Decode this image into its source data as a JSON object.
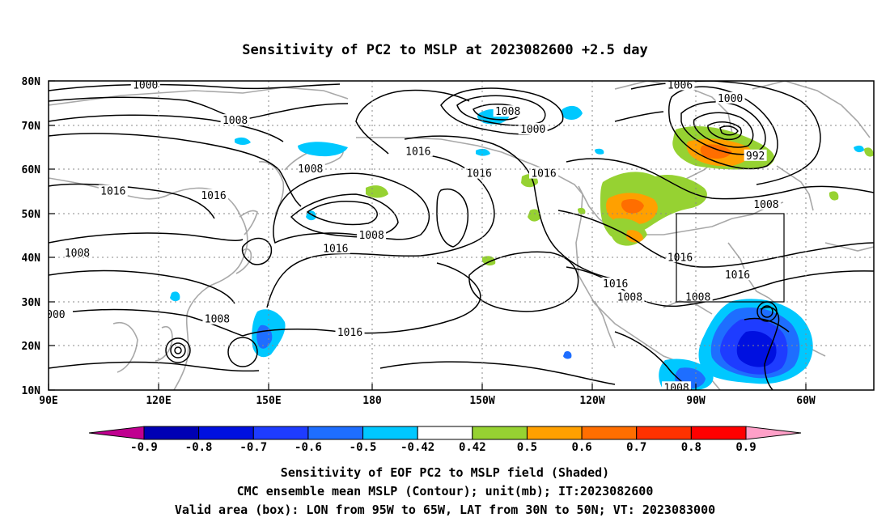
{
  "title": "Sensitivity of PC2 to MSLP at 2023082600 +2.5 day",
  "lat_labels": [
    "80N",
    "70N",
    "60N",
    "50N",
    "40N",
    "30N",
    "20N",
    "10N"
  ],
  "lon_labels": [
    "90E",
    "120E",
    "150E",
    "180",
    "150W",
    "120W",
    "90W",
    "60W"
  ],
  "contour_labels": [
    {
      "text": "1000",
      "lat": 79,
      "lon": 117
    },
    {
      "text": "1008",
      "lat": 71,
      "lon": 142
    },
    {
      "text": "1008",
      "lat": 73,
      "lon": 218
    },
    {
      "text": "1000",
      "lat": 69,
      "lon": 225
    },
    {
      "text": "1006",
      "lat": 79,
      "lon": 266
    },
    {
      "text": "1000",
      "lat": 76,
      "lon": 280
    },
    {
      "text": "992",
      "lat": 63,
      "lon": 287
    },
    {
      "text": "1016",
      "lat": 55,
      "lon": 108
    },
    {
      "text": "1016",
      "lat": 54,
      "lon": 136
    },
    {
      "text": "1008",
      "lat": 60,
      "lon": 163
    },
    {
      "text": "1016",
      "lat": 64,
      "lon": 193
    },
    {
      "text": "1016",
      "lat": 59,
      "lon": 210
    },
    {
      "text": "1016",
      "lat": 59,
      "lon": 228
    },
    {
      "text": "1008",
      "lat": 52,
      "lon": 290
    },
    {
      "text": "1008",
      "lat": 41,
      "lon": 98
    },
    {
      "text": "1008",
      "lat": 45,
      "lon": 180
    },
    {
      "text": "1016",
      "lat": 42,
      "lon": 170
    },
    {
      "text": "1016",
      "lat": 40,
      "lon": 266
    },
    {
      "text": "1016",
      "lat": 36,
      "lon": 282
    },
    {
      "text": "1016",
      "lat": 34,
      "lon": 248
    },
    {
      "text": "1008",
      "lat": 31,
      "lon": 252
    },
    {
      "text": "1008",
      "lat": 31,
      "lon": 271
    },
    {
      "text": "1008",
      "lat": 26,
      "lon": 137
    },
    {
      "text": "1016",
      "lat": 23,
      "lon": 174
    },
    {
      "text": "000",
      "lat": 27,
      "lon": 92
    },
    {
      "text": "1008",
      "lat": 10.5,
      "lon": 265
    }
  ],
  "colorbar": {
    "labels": [
      "-0.9",
      "-0.8",
      "-0.7",
      "-0.6",
      "-0.5",
      "-0.42",
      "0.42",
      "0.5",
      "0.6",
      "0.7",
      "0.8",
      "0.9"
    ],
    "colors": [
      "#c00090",
      "#0000b4",
      "#0010e0",
      "#1e3cff",
      "#1e6eff",
      "#00c8ff",
      "#ffffff",
      "#96d232",
      "#ffa000",
      "#ff6e00",
      "#ff3200",
      "#ff0000",
      "#ffa0c8"
    ]
  },
  "captions": [
    "Sensitivity of EOF PC2 to MSLP field (Shaded)",
    "CMC ensemble mean MSLP (Contour); unit(mb); IT:2023082600",
    "Valid area (box): LON from 95W to 65W, LAT from 30N to 50N; VT: 2023083000"
  ]
}
